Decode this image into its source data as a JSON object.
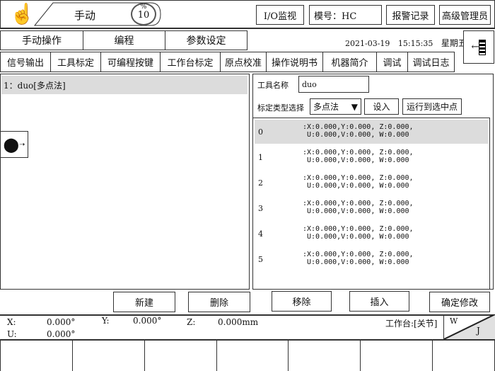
{
  "header": {
    "mode": "手动",
    "speed": "10",
    "speed_unit": "%",
    "io_monitor": "I/O监视",
    "model": "模号：HC",
    "alarm_log": "报警记录",
    "user": "高级管理员"
  },
  "main_tabs": [
    {
      "label": "手动操作",
      "active": true
    },
    {
      "label": "编程"
    },
    {
      "label": "参数设定"
    }
  ],
  "datetime": {
    "date": "2021-03-19",
    "time": "15:15:35",
    "weekday": "星期五"
  },
  "sub_tabs": [
    {
      "label": "信号输出"
    },
    {
      "label": "工具标定",
      "active": true
    },
    {
      "label": "可编程按键"
    },
    {
      "label": "工作台标定"
    },
    {
      "label": "原点校准"
    },
    {
      "label": "操作说明书"
    },
    {
      "label": "机器简介"
    },
    {
      "label": "调试"
    },
    {
      "label": "调试日志"
    }
  ],
  "tool_list": [
    {
      "label": "1：duo[多点法]",
      "selected": true
    }
  ],
  "form": {
    "tool_name_label": "工具名称",
    "tool_name_value": "duo",
    "type_label": "标定类型选择",
    "type_value": "多点法",
    "set_button": "设入",
    "run_button": "运行到选中点"
  },
  "points": [
    {
      "index": "0",
      "line1": ":X:0.000,Y:0.000, Z:0.000,",
      "line2": " U:0.000,V:0.000, W:0.000",
      "selected": true
    },
    {
      "index": "1",
      "line1": ":X:0.000,Y:0.000, Z:0.000,",
      "line2": " U:0.000,V:0.000, W:0.000"
    },
    {
      "index": "2",
      "line1": ":X:0.000,Y:0.000, Z:0.000,",
      "line2": " U:0.000,V:0.000, W:0.000"
    },
    {
      "index": "3",
      "line1": ":X:0.000,Y:0.000, Z:0.000,",
      "line2": " U:0.000,V:0.000, W:0.000"
    },
    {
      "index": "4",
      "line1": ":X:0.000,Y:0.000, Z:0.000,",
      "line2": " U:0.000,V:0.000, W:0.000"
    },
    {
      "index": "5",
      "line1": ":X:0.000,Y:0.000, Z:0.000,",
      "line2": " U:0.000,V:0.000, W:0.000"
    }
  ],
  "buttons": {
    "new": "新建",
    "delete": "删除",
    "remove": "移除",
    "insert": "插入",
    "confirm": "确定修改"
  },
  "status": {
    "x_label": "X:",
    "x_value": "0.000°",
    "y_label": "Y:",
    "y_value": "0.000°",
    "z_label": "Z:",
    "z_value": "0.000mm",
    "u_label": "U:",
    "u_value": "0.000°",
    "workbench": "工作台:[关节]",
    "coord_w": "W",
    "coord_j": "J"
  }
}
